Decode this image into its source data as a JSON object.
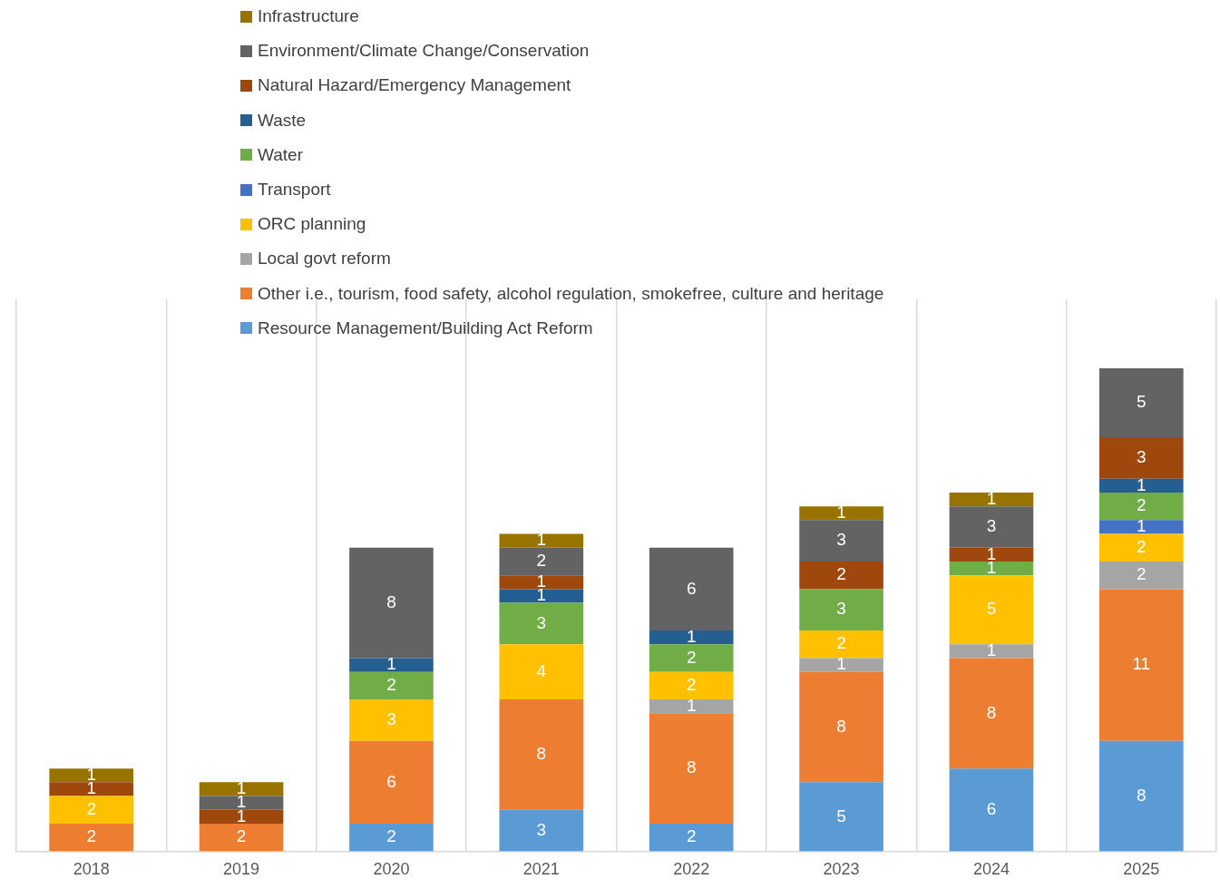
{
  "chart_data": {
    "type": "bar",
    "stacked": true,
    "categories": [
      "2018",
      "2019",
      "2020",
      "2021",
      "2022",
      "2023",
      "2024",
      "2025"
    ],
    "series": [
      {
        "name": "Resource Management/Building Act Reform",
        "color": "#5b9bd5",
        "values": [
          null,
          null,
          2,
          3,
          2,
          5,
          6,
          8
        ]
      },
      {
        "name": "Other i.e., tourism, food safety, alcohol regulation, smokefree, culture and heritage",
        "color": "#ed7d31",
        "values": [
          2,
          2,
          6,
          8,
          8,
          8,
          8,
          11
        ]
      },
      {
        "name": "Local govt reform",
        "color": "#a5a5a5",
        "values": [
          null,
          null,
          null,
          null,
          1,
          1,
          1,
          2
        ]
      },
      {
        "name": "ORC planning",
        "color": "#ffc000",
        "values": [
          2,
          null,
          3,
          4,
          2,
          2,
          5,
          2
        ]
      },
      {
        "name": "Transport",
        "color": "#4472c4",
        "values": [
          null,
          null,
          null,
          null,
          null,
          null,
          null,
          1
        ]
      },
      {
        "name": "Water",
        "color": "#70ad47",
        "values": [
          null,
          null,
          2,
          3,
          2,
          3,
          1,
          2
        ]
      },
      {
        "name": "Waste",
        "color": "#255e91",
        "values": [
          null,
          null,
          1,
          1,
          1,
          null,
          null,
          1
        ]
      },
      {
        "name": "Natural Hazard/Emergency Management",
        "color": "#9e480e",
        "values": [
          1,
          1,
          null,
          1,
          null,
          2,
          1,
          3
        ]
      },
      {
        "name": "Environment/Climate Change/Conservation",
        "color": "#636363",
        "values": [
          null,
          1,
          8,
          2,
          6,
          3,
          3,
          5
        ]
      },
      {
        "name": "Infrastructure",
        "color": "#997300",
        "values": [
          1,
          1,
          null,
          1,
          null,
          1,
          1,
          null
        ]
      }
    ],
    "ylim": [
      0,
      40
    ],
    "tick_labels": "x",
    "grid": "x",
    "legend": "top",
    "data_labels": true
  }
}
